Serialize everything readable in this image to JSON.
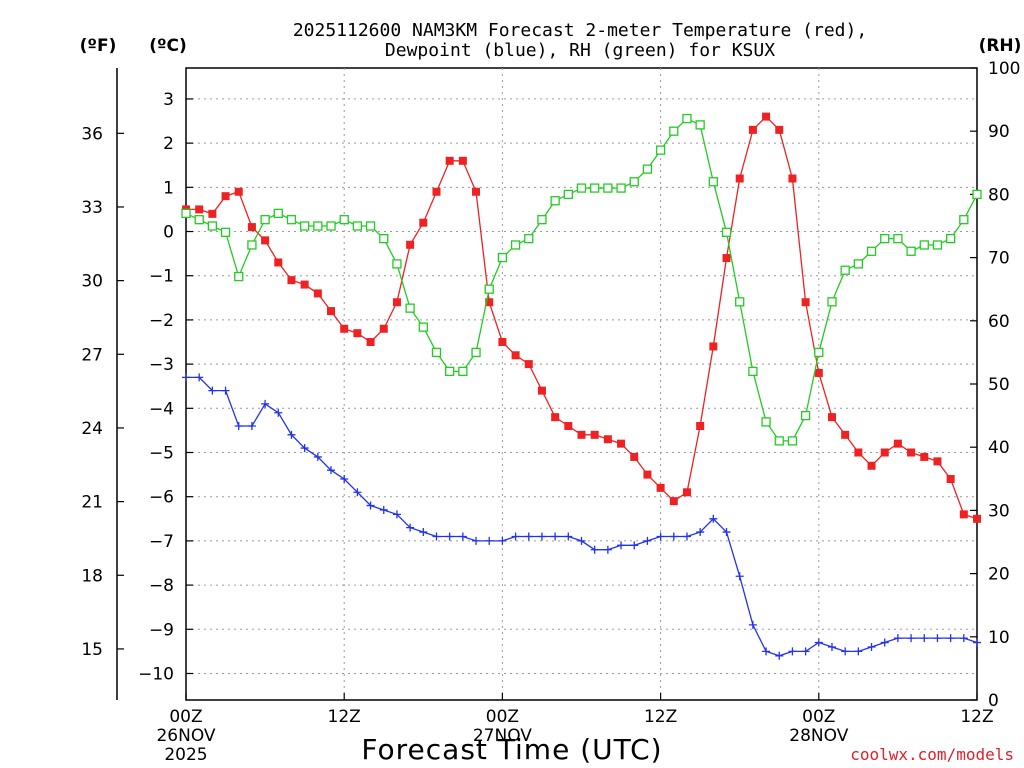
{
  "chart_data": {
    "type": "line",
    "title_line1": "2025112600 NAM3KM Forecast 2-meter Temperature (red),",
    "title_line2": "Dewpoint (blue), RH (green) for KSUX",
    "unit_f": "(ºF)",
    "unit_c": "(ºC)",
    "unit_rh": "(RH)",
    "xlabel": "Forecast Time (UTC)",
    "credit": "coolwx.com/models",
    "x_range_hours": [
      0,
      60
    ],
    "ylim_c": [
      -10.6,
      3.7
    ],
    "ylim_rh": [
      0,
      100
    ],
    "c_ticks": [
      "3",
      "2",
      "1",
      "0",
      "-1",
      "-2",
      "-3",
      "-4",
      "-5",
      "-6",
      "-7",
      "-8",
      "-9",
      "-10"
    ],
    "f_ticks": [
      "36",
      "33",
      "30",
      "27",
      "24",
      "21",
      "18",
      "15"
    ],
    "rh_ticks": [
      "100",
      "90",
      "80",
      "70",
      "60",
      "50",
      "40",
      "30",
      "20",
      "10",
      "0"
    ],
    "x_ticks": [
      {
        "hour": 0,
        "label": "00Z",
        "day": "26NOV",
        "year": "2025"
      },
      {
        "hour": 12,
        "label": "12Z",
        "day": "",
        "year": ""
      },
      {
        "hour": 24,
        "label": "00Z",
        "day": "27NOV",
        "year": ""
      },
      {
        "hour": 36,
        "label": "12Z",
        "day": "",
        "year": ""
      },
      {
        "hour": 48,
        "label": "00Z",
        "day": "28NOV",
        "year": ""
      },
      {
        "hour": 60,
        "label": "12Z",
        "day": "",
        "year": ""
      }
    ],
    "series": [
      {
        "name": "2-meter Temperature",
        "unit": "C",
        "color": "#ee2222",
        "marker": "filled-square",
        "values": [
          0.5,
          0.5,
          0.4,
          0.8,
          0.9,
          0.1,
          -0.2,
          -0.7,
          -1.1,
          -1.2,
          -1.4,
          -1.8,
          -2.2,
          -2.3,
          -2.5,
          -2.2,
          -1.6,
          -0.3,
          0.2,
          0.9,
          1.6,
          1.6,
          0.9,
          -1.6,
          -2.5,
          -2.8,
          -3.0,
          -3.6,
          -4.2,
          -4.4,
          -4.6,
          -4.6,
          -4.7,
          -4.8,
          -5.1,
          -5.5,
          -5.8,
          -6.1,
          -5.9,
          -4.4,
          -2.6,
          -0.6,
          1.2,
          2.3,
          2.6,
          2.3,
          1.2,
          -1.6,
          -3.2,
          -4.2,
          -4.6,
          -5.0,
          -5.3,
          -5.0,
          -4.8,
          -5.0,
          -5.1,
          -5.2,
          -5.6,
          -6.4,
          -6.5
        ]
      },
      {
        "name": "Dewpoint",
        "unit": "C",
        "color": "#2233ee",
        "marker": "plus",
        "values": [
          -3.3,
          -3.3,
          -3.6,
          -3.6,
          -4.4,
          -4.4,
          -3.9,
          -4.1,
          -4.6,
          -4.9,
          -5.1,
          -5.4,
          -5.6,
          -5.9,
          -6.2,
          -6.3,
          -6.4,
          -6.7,
          -6.8,
          -6.9,
          -6.9,
          -6.9,
          -7.0,
          -7.0,
          -7.0,
          -6.9,
          -6.9,
          -6.9,
          -6.9,
          -6.9,
          -7.0,
          -7.2,
          -7.2,
          -7.1,
          -7.1,
          -7.0,
          -6.9,
          -6.9,
          -6.9,
          -6.8,
          -6.5,
          -6.8,
          -7.8,
          -8.9,
          -9.5,
          -9.6,
          -9.5,
          -9.5,
          -9.3,
          -9.4,
          -9.5,
          -9.5,
          -9.4,
          -9.3,
          -9.2,
          -9.2,
          -9.2,
          -9.2,
          -9.2,
          -9.2,
          -9.3
        ]
      },
      {
        "name": "RH",
        "unit": "%",
        "color": "#22cc22",
        "marker": "open-square",
        "values": [
          77,
          76,
          75,
          74,
          67,
          72,
          76,
          77,
          76,
          75,
          75,
          75,
          76,
          75,
          75,
          73,
          69,
          62,
          59,
          55,
          52,
          52,
          55,
          65,
          70,
          72,
          73,
          76,
          79,
          80,
          81,
          81,
          81,
          81,
          82,
          84,
          87,
          90,
          92,
          91,
          82,
          74,
          63,
          52,
          44,
          41,
          41,
          45,
          55,
          63,
          68,
          69,
          71,
          73,
          73,
          71,
          72,
          72,
          73,
          76,
          80
        ]
      }
    ]
  }
}
